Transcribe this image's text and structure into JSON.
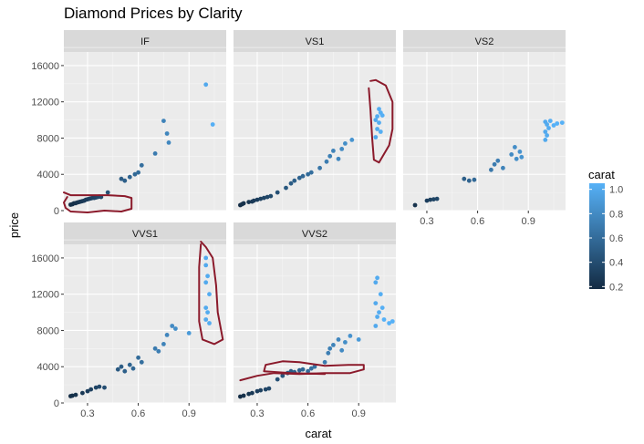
{
  "chart_data": {
    "type": "scatter",
    "title": "Diamond Prices by Clarity",
    "xlabel": "carat",
    "ylabel": "price",
    "x_ticks": [
      "0.3",
      "0.6",
      "0.9"
    ],
    "x_tick_values": [
      0.3,
      0.6,
      0.9
    ],
    "y_ticks": [
      "0",
      "4000",
      "8000",
      "12000",
      "16000"
    ],
    "y_tick_values": [
      0,
      4000,
      8000,
      12000,
      16000
    ],
    "xlim": [
      0.16,
      1.12
    ],
    "ylim": [
      0,
      17500
    ],
    "grid": true,
    "legend": {
      "title": "carat",
      "placement": "right",
      "ticks": [
        "1.0",
        "0.8",
        "0.6",
        "0.4",
        "0.2"
      ],
      "tick_values": [
        1.0,
        0.8,
        0.6,
        0.4,
        0.2
      ],
      "range": [
        0.18,
        1.05
      ],
      "color_low": "#132B43",
      "color_high": "#56B1F7"
    },
    "panels": [
      {
        "name": "IF",
        "points": [
          [
            0.2,
            650
          ],
          [
            0.21,
            700
          ],
          [
            0.22,
            800
          ],
          [
            0.23,
            820
          ],
          [
            0.24,
            900
          ],
          [
            0.25,
            950
          ],
          [
            0.26,
            1000
          ],
          [
            0.27,
            1050
          ],
          [
            0.28,
            1100
          ],
          [
            0.29,
            1200
          ],
          [
            0.3,
            1250
          ],
          [
            0.31,
            1300
          ],
          [
            0.32,
            1350
          ],
          [
            0.33,
            1400
          ],
          [
            0.34,
            1400
          ],
          [
            0.35,
            1450
          ],
          [
            0.36,
            1500
          ],
          [
            0.37,
            1550
          ],
          [
            0.38,
            1500
          ],
          [
            0.42,
            2000
          ],
          [
            0.5,
            3500
          ],
          [
            0.52,
            3300
          ],
          [
            0.55,
            3700
          ],
          [
            0.58,
            4000
          ],
          [
            0.6,
            4200
          ],
          [
            0.62,
            5000
          ],
          [
            0.7,
            6300
          ],
          [
            0.75,
            9900
          ],
          [
            0.77,
            8500
          ],
          [
            0.78,
            7500
          ],
          [
            1.0,
            13900
          ],
          [
            1.04,
            9500
          ]
        ]
      },
      {
        "name": "VS1",
        "points": [
          [
            0.2,
            600
          ],
          [
            0.21,
            700
          ],
          [
            0.22,
            800
          ],
          [
            0.25,
            950
          ],
          [
            0.27,
            1000
          ],
          [
            0.28,
            1100
          ],
          [
            0.3,
            1200
          ],
          [
            0.32,
            1300
          ],
          [
            0.34,
            1400
          ],
          [
            0.36,
            1500
          ],
          [
            0.38,
            1600
          ],
          [
            0.42,
            2000
          ],
          [
            0.47,
            2500
          ],
          [
            0.5,
            3000
          ],
          [
            0.52,
            3300
          ],
          [
            0.55,
            3600
          ],
          [
            0.57,
            3800
          ],
          [
            0.6,
            4000
          ],
          [
            0.62,
            4200
          ],
          [
            0.67,
            4700
          ],
          [
            0.71,
            5400
          ],
          [
            0.73,
            6000
          ],
          [
            0.75,
            6600
          ],
          [
            0.78,
            5700
          ],
          [
            0.8,
            6800
          ],
          [
            0.82,
            7400
          ],
          [
            0.86,
            7800
          ],
          [
            1.0,
            8100
          ],
          [
            1.01,
            9000
          ],
          [
            1.02,
            9700
          ],
          [
            1.01,
            10400
          ],
          [
            1.03,
            10800
          ],
          [
            1.02,
            11200
          ],
          [
            1.0,
            10000
          ],
          [
            1.04,
            10500
          ],
          [
            1.03,
            8700
          ]
        ]
      },
      {
        "name": "VS2",
        "points": [
          [
            0.23,
            600
          ],
          [
            0.3,
            1100
          ],
          [
            0.32,
            1200
          ],
          [
            0.34,
            1250
          ],
          [
            0.36,
            1300
          ],
          [
            0.52,
            3500
          ],
          [
            0.55,
            3300
          ],
          [
            0.58,
            3400
          ],
          [
            0.68,
            4500
          ],
          [
            0.7,
            5100
          ],
          [
            0.72,
            5500
          ],
          [
            0.75,
            4700
          ],
          [
            0.8,
            6200
          ],
          [
            0.82,
            7000
          ],
          [
            0.85,
            6500
          ],
          [
            0.83,
            5700
          ],
          [
            0.86,
            5900
          ],
          [
            1.0,
            7800
          ],
          [
            1.01,
            8300
          ],
          [
            1.0,
            8700
          ],
          [
            1.02,
            9100
          ],
          [
            1.01,
            9500
          ],
          [
            1.0,
            9800
          ],
          [
            1.03,
            9900
          ],
          [
            1.05,
            9400
          ],
          [
            1.07,
            9600
          ],
          [
            1.1,
            9700
          ]
        ]
      },
      {
        "name": "VVS1",
        "points": [
          [
            0.2,
            750
          ],
          [
            0.21,
            800
          ],
          [
            0.23,
            900
          ],
          [
            0.27,
            1100
          ],
          [
            0.3,
            1300
          ],
          [
            0.32,
            1500
          ],
          [
            0.35,
            1700
          ],
          [
            0.37,
            1800
          ],
          [
            0.4,
            1700
          ],
          [
            0.48,
            3700
          ],
          [
            0.5,
            4000
          ],
          [
            0.52,
            3500
          ],
          [
            0.55,
            4200
          ],
          [
            0.57,
            3800
          ],
          [
            0.6,
            5000
          ],
          [
            0.62,
            4500
          ],
          [
            0.7,
            6000
          ],
          [
            0.72,
            5700
          ],
          [
            0.75,
            6500
          ],
          [
            0.77,
            7500
          ],
          [
            0.8,
            8500
          ],
          [
            0.82,
            8200
          ],
          [
            0.9,
            7700
          ],
          [
            1.0,
            16000
          ],
          [
            1.0,
            15200
          ],
          [
            1.01,
            14000
          ],
          [
            1.0,
            13300
          ],
          [
            1.02,
            12000
          ],
          [
            1.0,
            10500
          ],
          [
            1.01,
            10000
          ],
          [
            1.0,
            9200
          ],
          [
            1.02,
            8800
          ]
        ]
      },
      {
        "name": "VVS2",
        "points": [
          [
            0.2,
            700
          ],
          [
            0.22,
            800
          ],
          [
            0.25,
            1000
          ],
          [
            0.27,
            1100
          ],
          [
            0.3,
            1300
          ],
          [
            0.32,
            1400
          ],
          [
            0.35,
            1500
          ],
          [
            0.37,
            1600
          ],
          [
            0.42,
            2600
          ],
          [
            0.45,
            3000
          ],
          [
            0.48,
            3300
          ],
          [
            0.5,
            3500
          ],
          [
            0.52,
            3400
          ],
          [
            0.55,
            3600
          ],
          [
            0.57,
            3700
          ],
          [
            0.6,
            3500
          ],
          [
            0.62,
            3800
          ],
          [
            0.64,
            4000
          ],
          [
            0.7,
            4500
          ],
          [
            0.72,
            5500
          ],
          [
            0.73,
            6000
          ],
          [
            0.75,
            6400
          ],
          [
            0.78,
            7000
          ],
          [
            0.8,
            5800
          ],
          [
            0.82,
            6700
          ],
          [
            0.85,
            7400
          ],
          [
            0.9,
            7000
          ],
          [
            1.0,
            8500
          ],
          [
            1.01,
            9500
          ],
          [
            1.02,
            10000
          ],
          [
            1.0,
            11000
          ],
          [
            1.03,
            12000
          ],
          [
            1.01,
            13800
          ],
          [
            1.0,
            13300
          ],
          [
            1.05,
            9200
          ],
          [
            1.08,
            8800
          ],
          [
            1.1,
            9000
          ],
          [
            1.04,
            10500
          ]
        ]
      }
    ],
    "annotations": [
      {
        "panel": "IF",
        "shape": "loop",
        "color": "#8B1A2B"
      },
      {
        "panel": "VS1",
        "shape": "loop",
        "color": "#8B1A2B"
      },
      {
        "panel": "VVS1",
        "shape": "loop",
        "color": "#8B1A2B"
      },
      {
        "panel": "VVS2",
        "shape": "loop",
        "color": "#8B1A2B"
      }
    ]
  }
}
